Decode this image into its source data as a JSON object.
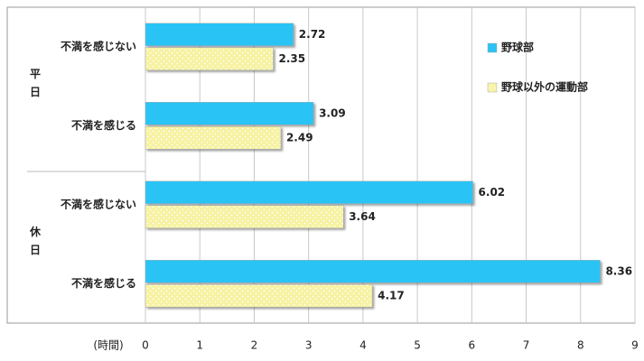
{
  "chart_data": {
    "type": "bar",
    "orientation": "horizontal",
    "category_groups": [
      "平日",
      "休日"
    ],
    "categories": [
      "不満を感じない",
      "不満を感じる",
      "不満を感じない",
      "不満を感じる"
    ],
    "series": [
      {
        "name": "野球部",
        "color": "#29c4f5",
        "values": [
          2.72,
          3.09,
          6.02,
          8.36
        ]
      },
      {
        "name": "野球以外の運動部",
        "color": "#f6f2a0",
        "pattern": "dots",
        "values": [
          2.35,
          2.49,
          3.64,
          4.17
        ]
      }
    ],
    "xlabel": "(時間)",
    "xlim": [
      0,
      9
    ],
    "xticks": [
      0,
      1,
      2,
      3,
      4,
      5,
      6,
      7,
      8,
      9
    ],
    "grid": true,
    "legend": "upper right"
  }
}
